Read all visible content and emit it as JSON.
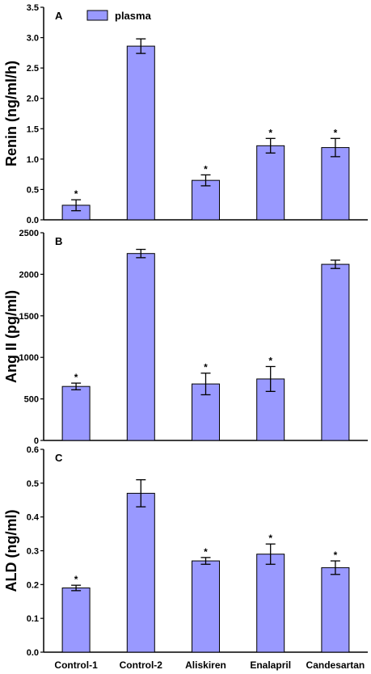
{
  "chart_data": [
    {
      "type": "bar",
      "panel_label": "A",
      "ylabel": "Renin (ng/ml/h)",
      "categories": [
        "Control-1",
        "Control-2",
        "Aliskiren",
        "Enalapril",
        "Candesartan"
      ],
      "values": [
        0.24,
        2.86,
        0.65,
        1.22,
        1.19
      ],
      "errors": [
        0.09,
        0.12,
        0.09,
        0.12,
        0.15
      ],
      "significant": [
        true,
        false,
        true,
        true,
        true
      ],
      "ylim": [
        0,
        3.5
      ],
      "yticks": [
        "0.0",
        "0.5",
        "1.0",
        "1.5",
        "2.0",
        "2.5",
        "3.0",
        "3.5"
      ],
      "series": [
        {
          "name": "plasma"
        }
      ],
      "legend_position": "top-left"
    },
    {
      "type": "bar",
      "panel_label": "B",
      "ylabel": "Ang II (pg/ml)",
      "categories": [
        "Control-1",
        "Control-2",
        "Aliskiren",
        "Enalapril",
        "Candesartan"
      ],
      "values": [
        650,
        2250,
        680,
        740,
        2120
      ],
      "errors": [
        40,
        50,
        130,
        150,
        50
      ],
      "significant": [
        true,
        false,
        true,
        true,
        false
      ],
      "ylim": [
        0,
        2500
      ],
      "yticks": [
        "0",
        "500",
        "1000",
        "1500",
        "2000",
        "2500"
      ]
    },
    {
      "type": "bar",
      "panel_label": "C",
      "ylabel": "ALD (ng/ml)",
      "categories": [
        "Control-1",
        "Control-2",
        "Aliskiren",
        "Enalapril",
        "Candesartan"
      ],
      "values": [
        0.19,
        0.47,
        0.27,
        0.29,
        0.25
      ],
      "errors": [
        0.008,
        0.04,
        0.01,
        0.03,
        0.02
      ],
      "significant": [
        true,
        false,
        true,
        true,
        true
      ],
      "ylim": [
        0,
        0.6
      ],
      "yticks": [
        "0.0",
        "0.1",
        "0.2",
        "0.3",
        "0.4",
        "0.5",
        "0.6"
      ]
    }
  ],
  "significance_marker": "*",
  "colors": {
    "bar": "#9999ff",
    "edge": "#000000"
  }
}
